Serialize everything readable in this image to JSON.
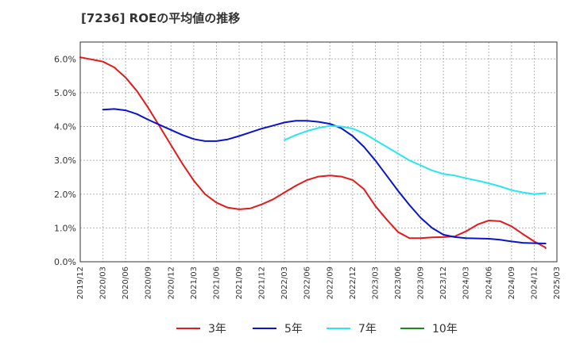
{
  "chart_data": {
    "type": "line",
    "title": "[7236]  ROEの平均値の推移",
    "xlabel": "",
    "ylabel": "",
    "ylim": [
      0,
      6.5
    ],
    "y_ticks": [
      0,
      1,
      2,
      3,
      4,
      5,
      6
    ],
    "y_tick_labels": [
      "0.0%",
      "1.0%",
      "2.0%",
      "3.0%",
      "4.0%",
      "5.0%",
      "6.0%"
    ],
    "x_ticks": [
      "2019/12",
      "2020/03",
      "2020/06",
      "2020/09",
      "2020/12",
      "2021/03",
      "2021/06",
      "2021/09",
      "2021/12",
      "2022/03",
      "2022/06",
      "2022/09",
      "2022/12",
      "2023/03",
      "2023/06",
      "2023/09",
      "2023/12",
      "2024/03",
      "2024/06",
      "2024/09",
      "2024/12",
      "2025/03"
    ],
    "grid": true,
    "legend_position": "bottom",
    "series": [
      {
        "name": "3年",
        "color": "#e31a1c",
        "points": [
          [
            0,
            6.05
          ],
          [
            1,
            5.92
          ],
          [
            1.5,
            5.75
          ],
          [
            2,
            5.45
          ],
          [
            2.5,
            5.05
          ],
          [
            3,
            4.55
          ],
          [
            3.5,
            4.0
          ],
          [
            4,
            3.45
          ],
          [
            4.5,
            2.9
          ],
          [
            5,
            2.4
          ],
          [
            5.5,
            2.0
          ],
          [
            6,
            1.75
          ],
          [
            6.5,
            1.6
          ],
          [
            7,
            1.55
          ],
          [
            7.5,
            1.58
          ],
          [
            8,
            1.7
          ],
          [
            8.5,
            1.85
          ],
          [
            9,
            2.05
          ],
          [
            9.5,
            2.25
          ],
          [
            10,
            2.42
          ],
          [
            10.5,
            2.52
          ],
          [
            11,
            2.55
          ],
          [
            11.5,
            2.52
          ],
          [
            12,
            2.42
          ],
          [
            12.5,
            2.15
          ],
          [
            13,
            1.65
          ],
          [
            13.5,
            1.25
          ],
          [
            14,
            0.88
          ],
          [
            14.5,
            0.7
          ],
          [
            15,
            0.7
          ],
          [
            15.5,
            0.72
          ],
          [
            16,
            0.73
          ],
          [
            16.5,
            0.75
          ],
          [
            17,
            0.9
          ],
          [
            17.5,
            1.1
          ],
          [
            18,
            1.22
          ],
          [
            18.5,
            1.2
          ],
          [
            19,
            1.05
          ],
          [
            19.5,
            0.82
          ],
          [
            20,
            0.6
          ],
          [
            20.5,
            0.42
          ],
          [
            20.5,
            0.4
          ]
        ]
      },
      {
        "name": "5年",
        "color": "#0a14c8",
        "points": [
          [
            1,
            4.5
          ],
          [
            1.5,
            4.52
          ],
          [
            2,
            4.48
          ],
          [
            2.5,
            4.37
          ],
          [
            3,
            4.2
          ],
          [
            3.5,
            4.05
          ],
          [
            4,
            3.9
          ],
          [
            4.5,
            3.75
          ],
          [
            5,
            3.63
          ],
          [
            5.5,
            3.57
          ],
          [
            6,
            3.57
          ],
          [
            6.5,
            3.62
          ],
          [
            7,
            3.72
          ],
          [
            7.5,
            3.83
          ],
          [
            8,
            3.94
          ],
          [
            8.5,
            4.03
          ],
          [
            9,
            4.12
          ],
          [
            9.5,
            4.17
          ],
          [
            10,
            4.17
          ],
          [
            10.5,
            4.14
          ],
          [
            11,
            4.08
          ],
          [
            11.5,
            3.95
          ],
          [
            12,
            3.72
          ],
          [
            12.5,
            3.4
          ],
          [
            13,
            3.0
          ],
          [
            13.5,
            2.55
          ],
          [
            14,
            2.1
          ],
          [
            14.5,
            1.68
          ],
          [
            15,
            1.3
          ],
          [
            15.5,
            1.0
          ],
          [
            16,
            0.8
          ],
          [
            16.5,
            0.73
          ],
          [
            17,
            0.7
          ],
          [
            17.5,
            0.69
          ],
          [
            18,
            0.68
          ],
          [
            18.5,
            0.65
          ],
          [
            19,
            0.6
          ],
          [
            19.5,
            0.56
          ],
          [
            20,
            0.55
          ],
          [
            20.5,
            0.54
          ]
        ]
      },
      {
        "name": "7年",
        "color": "#27e6f0",
        "points": [
          [
            9,
            3.6
          ],
          [
            9.5,
            3.75
          ],
          [
            10,
            3.87
          ],
          [
            10.5,
            3.96
          ],
          [
            11,
            4.02
          ],
          [
            11.5,
            4.0
          ],
          [
            12,
            3.94
          ],
          [
            12.5,
            3.8
          ],
          [
            13,
            3.6
          ],
          [
            13.5,
            3.4
          ],
          [
            14,
            3.2
          ],
          [
            14.5,
            3.0
          ],
          [
            15,
            2.85
          ],
          [
            15.5,
            2.7
          ],
          [
            16,
            2.6
          ],
          [
            16.5,
            2.55
          ],
          [
            17,
            2.47
          ],
          [
            17.5,
            2.4
          ],
          [
            18,
            2.32
          ],
          [
            18.5,
            2.23
          ],
          [
            19,
            2.12
          ],
          [
            19.5,
            2.05
          ],
          [
            20,
            2.0
          ],
          [
            20.5,
            2.03
          ]
        ]
      },
      {
        "name": "10年",
        "color": "#1a8a1a",
        "points": []
      }
    ]
  }
}
